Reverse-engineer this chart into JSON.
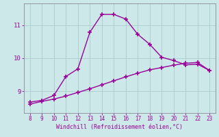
{
  "line1_x": [
    8,
    9,
    10,
    11,
    12,
    13,
    14,
    15,
    16,
    17,
    18,
    19,
    20,
    21,
    22,
    23
  ],
  "line1_y": [
    8.68,
    8.73,
    8.88,
    9.45,
    9.68,
    10.78,
    11.32,
    11.32,
    11.18,
    10.72,
    10.42,
    10.03,
    9.93,
    9.8,
    9.82,
    9.63
  ],
  "line2_x": [
    8,
    9,
    10,
    11,
    12,
    13,
    14,
    15,
    16,
    17,
    18,
    19,
    20,
    21,
    22,
    23
  ],
  "line2_y": [
    8.62,
    8.7,
    8.77,
    8.86,
    8.97,
    9.08,
    9.2,
    9.32,
    9.44,
    9.55,
    9.65,
    9.72,
    9.79,
    9.85,
    9.87,
    9.63
  ],
  "line_color": "#990099",
  "bg_color": "#cce8e8",
  "grid_color": "#aacccc",
  "xlabel": "Windchill (Refroidissement éolien,°C)",
  "xlabel_color": "#990099",
  "ytick_labels": [
    "9",
    "10",
    "11"
  ],
  "ytick_positions": [
    9,
    10,
    11
  ],
  "xtick_positions": [
    8,
    9,
    10,
    11,
    12,
    13,
    14,
    15,
    16,
    17,
    18,
    19,
    20,
    21,
    22,
    23
  ],
  "xlim": [
    7.5,
    23.5
  ],
  "ylim": [
    8.35,
    11.65
  ],
  "marker": "+",
  "markersize": 4,
  "markeredgewidth": 1.2,
  "linewidth": 1.0,
  "tick_fontsize": 5.5,
  "xlabel_fontsize": 6.0,
  "ytick_fontsize": 6.5
}
